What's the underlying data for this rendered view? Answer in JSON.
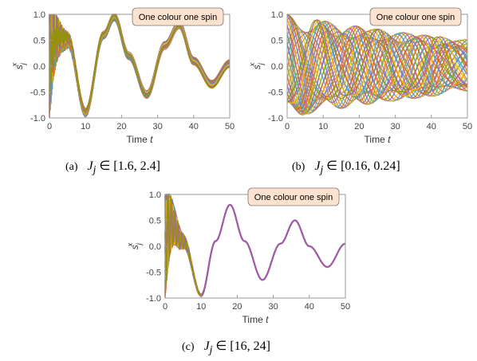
{
  "colors": {
    "legend_fill": "#fde3cf",
    "axis": "#999999",
    "single_series": "#a05aa8",
    "palette": [
      "#5e81b5",
      "#e19c24",
      "#8fb032",
      "#eb6235",
      "#8778b3",
      "#c56e1a",
      "#5d9ec7",
      "#ffbf00",
      "#a5609d",
      "#929600",
      "#e95536",
      "#6685d9",
      "#f89f13",
      "#bc5b80",
      "#47b66d"
    ]
  },
  "chart_data": [
    {
      "type": "line",
      "panel_id": "a",
      "caption_tag": "(a)",
      "caption_math": "J",
      "caption_sub": "j",
      "caption_rest": " ∈ [1.6, 2.4]",
      "xlabel": "Time t",
      "ylabel": "s",
      "ylabel_sub": "j",
      "ylabel_sup": "x",
      "legend": "One colour one spin",
      "xlim": [
        0,
        50
      ],
      "ylim": [
        -1.0,
        1.0
      ],
      "xticks": [
        "0",
        "10",
        "20",
        "30",
        "40",
        "50"
      ],
      "yticks": [
        "1.0",
        "0.5",
        "0.0",
        "-0.5",
        "-1.0"
      ],
      "series_count": 40,
      "J_range": [
        1.6,
        2.4
      ],
      "envelope": {
        "x": [
          0,
          5,
          10,
          15,
          18,
          22,
          27,
          32,
          36,
          40,
          45,
          50
        ],
        "y": [
          0.95,
          0.55,
          -0.9,
          0.6,
          0.95,
          0.2,
          -0.55,
          0.4,
          0.8,
          0.1,
          -0.35,
          0.05
        ]
      }
    },
    {
      "type": "line",
      "panel_id": "b",
      "caption_tag": "(b)",
      "caption_math": "J",
      "caption_sub": "j",
      "caption_rest": " ∈ [0.16, 0.24]",
      "xlabel": "Time t",
      "ylabel": "s",
      "ylabel_sub": "j",
      "ylabel_sup": "x",
      "legend": "One colour one spin",
      "xlim": [
        0,
        50
      ],
      "ylim": [
        -1.0,
        1.0
      ],
      "xticks": [
        "0",
        "10",
        "20",
        "30",
        "40",
        "50"
      ],
      "yticks": [
        "1.0",
        "0.5",
        "0.0",
        "-0.5",
        "-1.0"
      ],
      "series_count": 40,
      "J_range": [
        0.16,
        0.24
      ]
    },
    {
      "type": "line",
      "panel_id": "c",
      "caption_tag": "(c)",
      "caption_math": "J",
      "caption_sub": "j",
      "caption_rest": " ∈ [16, 24]",
      "xlabel": "Time t",
      "ylabel": "s",
      "ylabel_sub": "j",
      "ylabel_sup": "x",
      "legend": "One colour one spin",
      "xlim": [
        0,
        50
      ],
      "ylim": [
        -1.0,
        1.0
      ],
      "xticks": [
        "0",
        "10",
        "20",
        "30",
        "40",
        "50"
      ],
      "yticks": [
        "1.0",
        "0.5",
        "0.0",
        "-0.5",
        "-1.0"
      ],
      "series_count": 40,
      "J_range": [
        16,
        24
      ],
      "collapse_after": 10,
      "main_curve": {
        "x": [
          0,
          5,
          10,
          14,
          18,
          22,
          27,
          32,
          36,
          40,
          45,
          50
        ],
        "y": [
          0.95,
          0.1,
          -0.95,
          0.1,
          0.8,
          0.1,
          -0.65,
          0.05,
          0.5,
          0.0,
          -0.4,
          0.05
        ]
      }
    }
  ]
}
